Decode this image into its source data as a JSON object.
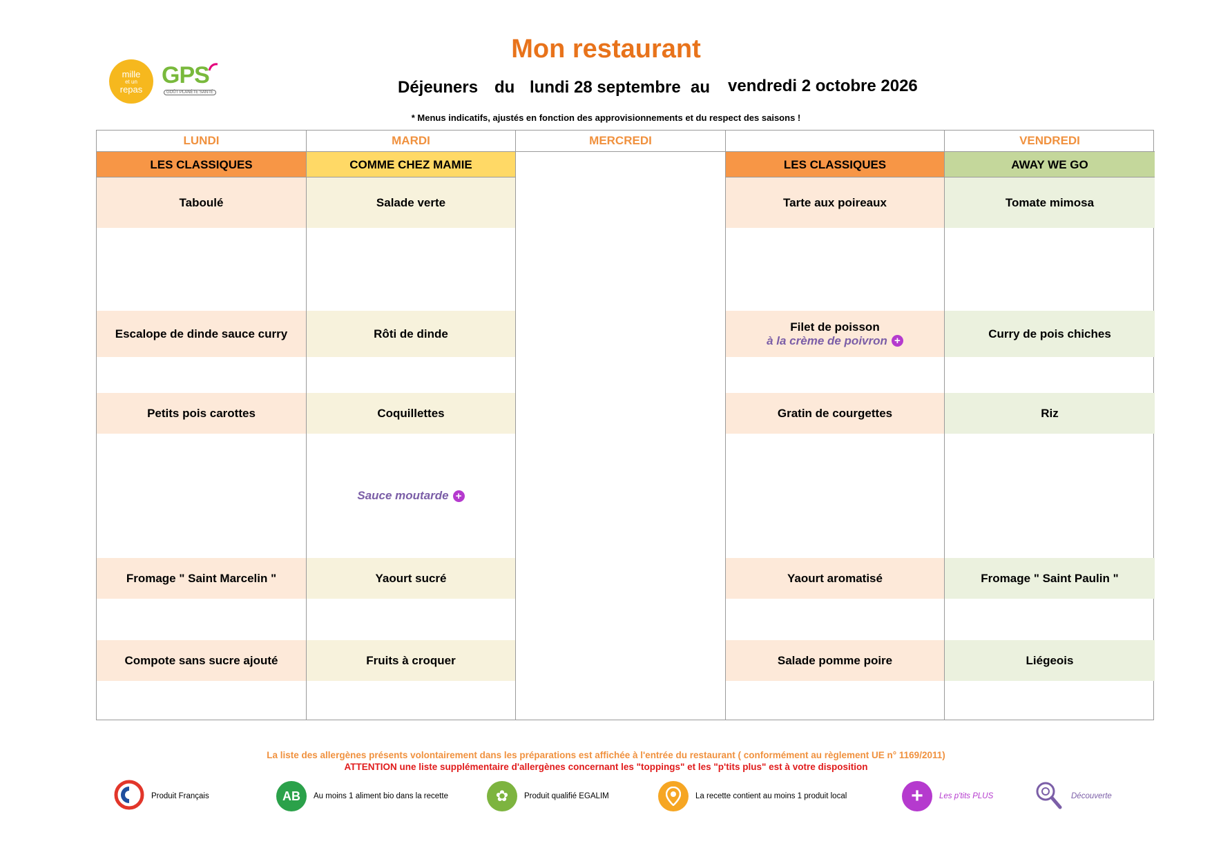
{
  "title": "Mon restaurant",
  "logos": {
    "mille_line1": "mille",
    "mille_line2": "et un",
    "mille_line3": "repas",
    "gps": "GPS",
    "gps_tagline": "GOÛT PLANÈTE SANTÉ"
  },
  "period": {
    "meal": "Déjeuners",
    "from_word": "du",
    "start": "lundi 28 septembre",
    "to_word": "au",
    "end": "vendredi 2 octobre 2026"
  },
  "note": "* Menus indicatifs, ajustés en fonction des approvisionnements et du respect des saisons !",
  "days": [
    {
      "day": "LUNDI",
      "theme": "LES CLASSIQUES",
      "theme_color": "#F79646",
      "cell_color": "#FDE9D9",
      "starter": "Taboulé",
      "main": "Escalope de dinde sauce curry",
      "main_sub": "",
      "side": "Petits pois carottes",
      "side_sub": "",
      "dairy": "Fromage \" Saint Marcelin \"",
      "dessert": "Compote sans sucre ajouté"
    },
    {
      "day": "MARDI",
      "theme": "COMME CHEZ MAMIE",
      "theme_color": "#FFD966",
      "cell_color": "#F7F2DC",
      "starter": "Salade verte",
      "main": "Rôti de dinde",
      "main_sub": "",
      "side": "Coquillettes",
      "side_sub": "Sauce moutarde",
      "dairy": "Yaourt sucré",
      "dessert": "Fruits à croquer"
    },
    {
      "day": "MERCREDI",
      "theme": "",
      "theme_color": "#FFFFFF",
      "cell_color": "#FFFFFF",
      "starter": "",
      "main": "",
      "main_sub": "",
      "side": "",
      "side_sub": "",
      "dairy": "",
      "dessert": ""
    },
    {
      "day": "",
      "theme": "LES CLASSIQUES",
      "theme_color": "#F79646",
      "cell_color": "#FDE9D9",
      "starter": "Tarte aux poireaux",
      "main": "Filet de poisson",
      "main_sub": "à la crème de poivron",
      "side": "Gratin de courgettes",
      "side_sub": "",
      "dairy": "Yaourt aromatisé",
      "dessert": "Salade pomme poire"
    },
    {
      "day": "VENDREDI",
      "theme": "AWAY WE GO",
      "theme_color": "#C4D79B",
      "cell_color": "#EBF1DE",
      "starter": "Tomate mimosa",
      "main": "Curry de pois chiches",
      "main_sub": "",
      "side": "Riz",
      "side_sub": "",
      "dairy": "Fromage \" Saint Paulin \"",
      "dessert": "Liégeois"
    }
  ],
  "footer": {
    "allergens": "La liste des allergènes présents volontairement dans les préparations est affichée à l'entrée du restaurant ( conformément au règlement UE n° 1169/2011)",
    "warning": "ATTENTION une liste supplémentaire d'allergènes concernant les \"toppings\" et les \"p'tits plus\" est à votre disposition"
  },
  "legend": [
    {
      "icon": "french-flag-icon",
      "label": "Produit Français",
      "color": "#E2362A"
    },
    {
      "icon": "organic-ab-icon",
      "label": "Au moins 1 aliment bio dans la recette",
      "color": "#2BA14A"
    },
    {
      "icon": "egalim-icon",
      "label": "Produit qualifié EGALIM",
      "color": "#7DB43F"
    },
    {
      "icon": "location-pin-icon",
      "label": "La recette contient au moins 1 produit local",
      "color": "#F6A623"
    },
    {
      "icon": "plus-icon",
      "label": "Les p'tits PLUS",
      "color": "#B53ACE"
    },
    {
      "icon": "magnifier-icon",
      "label": "Découverte",
      "color": "#7B5EA7"
    }
  ]
}
